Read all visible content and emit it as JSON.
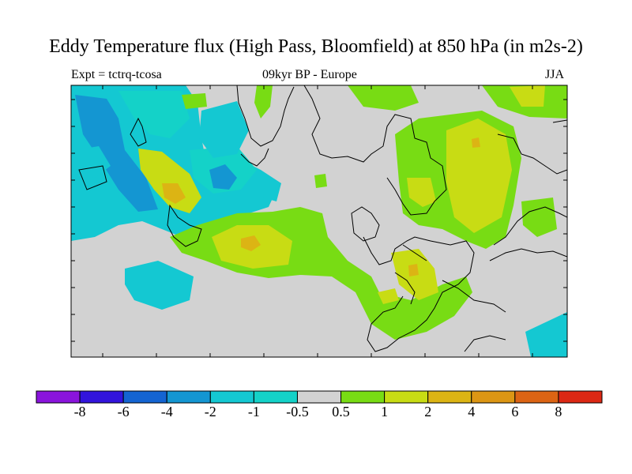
{
  "title": "Eddy Temperature flux (High Pass, Bloomfield) at 850 hPa (in m2s-2)",
  "subtitle_left": "Expt = tctrq-tcosa",
  "subtitle_center": "09kyr BP - Europe",
  "subtitle_right": "JJA",
  "colorbar": {
    "colors": [
      "#8a14dc",
      "#3214dc",
      "#1464d2",
      "#1496d2",
      "#14c8d2",
      "#14d2c8",
      "#d2d2d2",
      "#78dc14",
      "#c8dc14",
      "#dcb414",
      "#dc9614",
      "#dc6414",
      "#dc2814"
    ],
    "labels": [
      "-8",
      "-6",
      "-4",
      "-2",
      "-1",
      "-0.5",
      "0.5",
      "1",
      "2",
      "4",
      "6",
      "8"
    ]
  },
  "colors": {
    "neutral": "#d2d2d2",
    "light_green": "#78dc14",
    "yellow_green": "#c8dc14",
    "orange": "#dcb414",
    "cyan": "#14c8d2",
    "teal": "#14d2c8",
    "blue": "#1496d2",
    "coast": "#000000"
  }
}
